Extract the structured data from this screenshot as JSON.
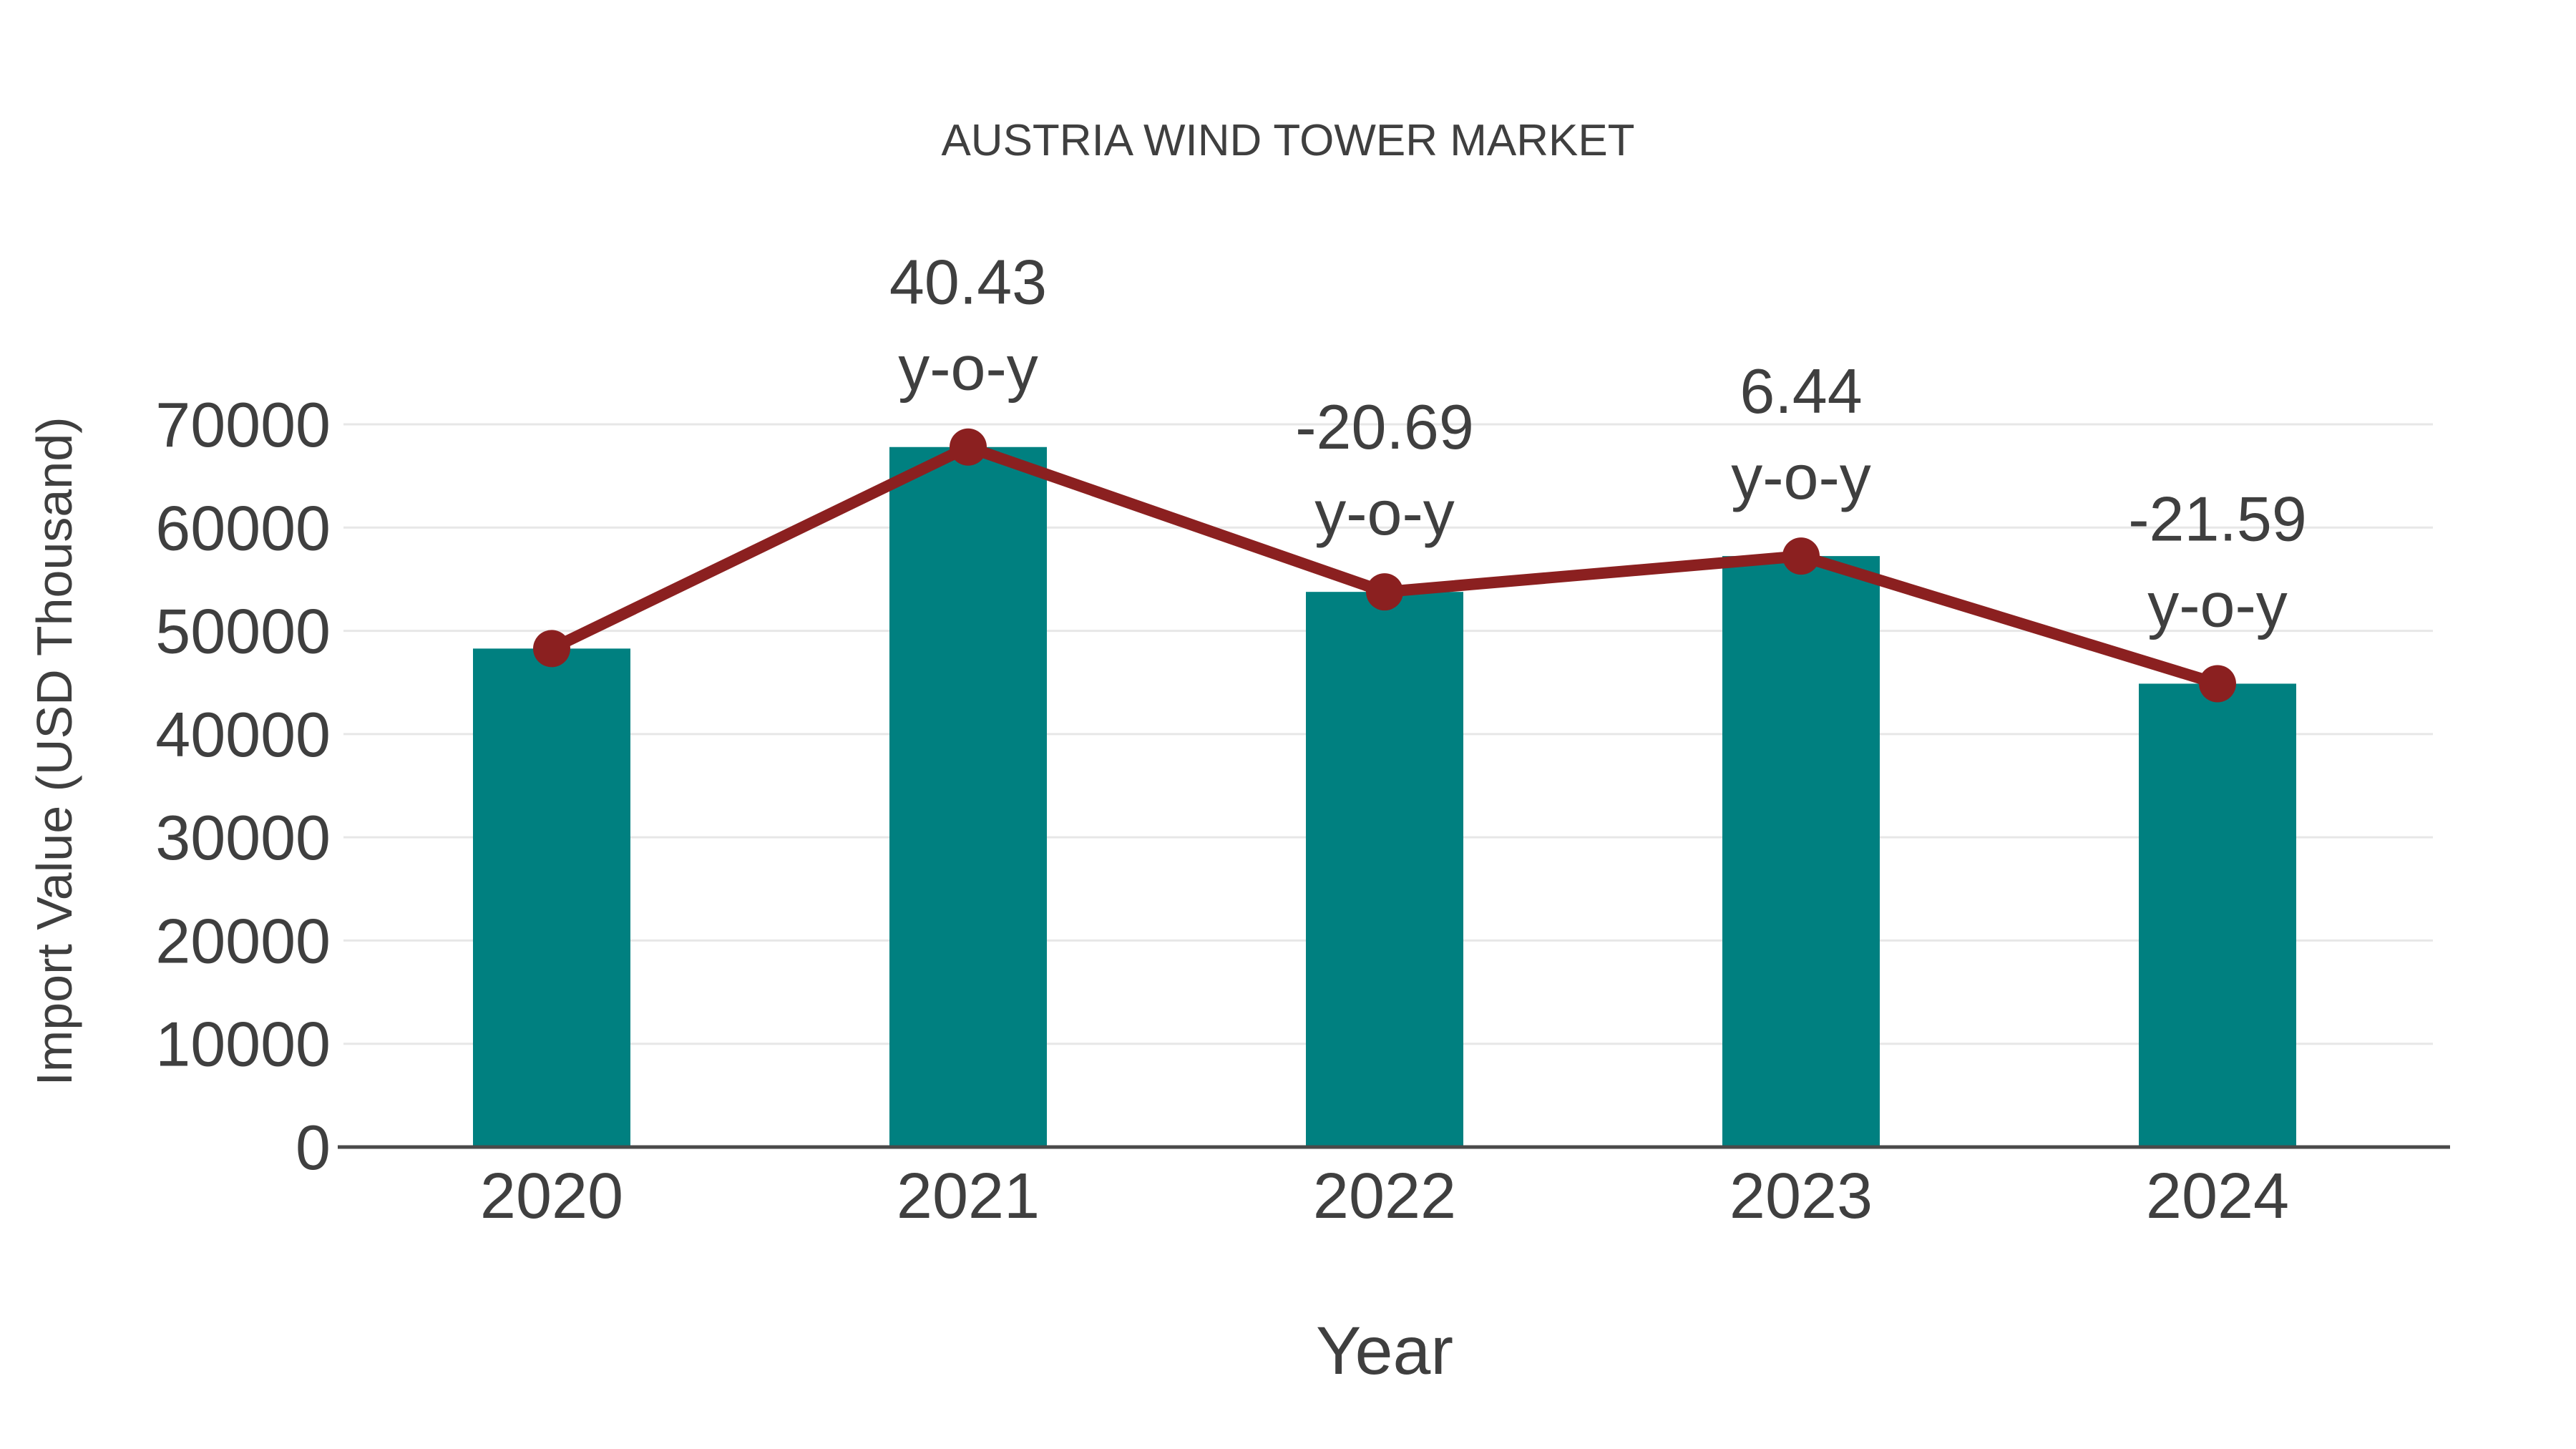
{
  "figure": {
    "background": "#ffffff"
  },
  "chart_data": {
    "type": "bar",
    "subtype": "bar-with-line-overlay",
    "title": "AUSTRIA WIND TOWER MARKET",
    "xlabel": "Year",
    "ylabel": "Import Value (USD Thousand)",
    "categories": [
      "2020",
      "2021",
      "2022",
      "2023",
      "2024"
    ],
    "series": [
      {
        "name": "Import Value (USD Thousand)",
        "type": "bar",
        "color": "#008080",
        "values": [
          48280,
          67800,
          53770,
          57240,
          44880
        ]
      },
      {
        "name": "y-o-y change (%)",
        "type": "line",
        "color": "#8B2020",
        "values": [
          null,
          40.43,
          -20.69,
          6.44,
          -21.59
        ]
      }
    ],
    "annotations": [
      {
        "category": "2021",
        "line1": "40.43",
        "line2": "y-o-y"
      },
      {
        "category": "2022",
        "line1": "-20.69",
        "line2": "y-o-y"
      },
      {
        "category": "2023",
        "line1": "6.44",
        "line2": "y-o-y"
      },
      {
        "category": "2024",
        "line1": "-21.59",
        "line2": "y-o-y"
      }
    ],
    "ylim": [
      0,
      70000
    ],
    "yticks": [
      0,
      10000,
      20000,
      30000,
      40000,
      50000,
      60000,
      70000
    ],
    "grid": "horizontal",
    "legend": "none",
    "colors": {
      "bar": "#008080",
      "line": "#8B2020",
      "marker": "#8B2020",
      "text": "#3f3f3f",
      "grid": "#e7e7e7",
      "axis": "#4a4a4a"
    }
  }
}
